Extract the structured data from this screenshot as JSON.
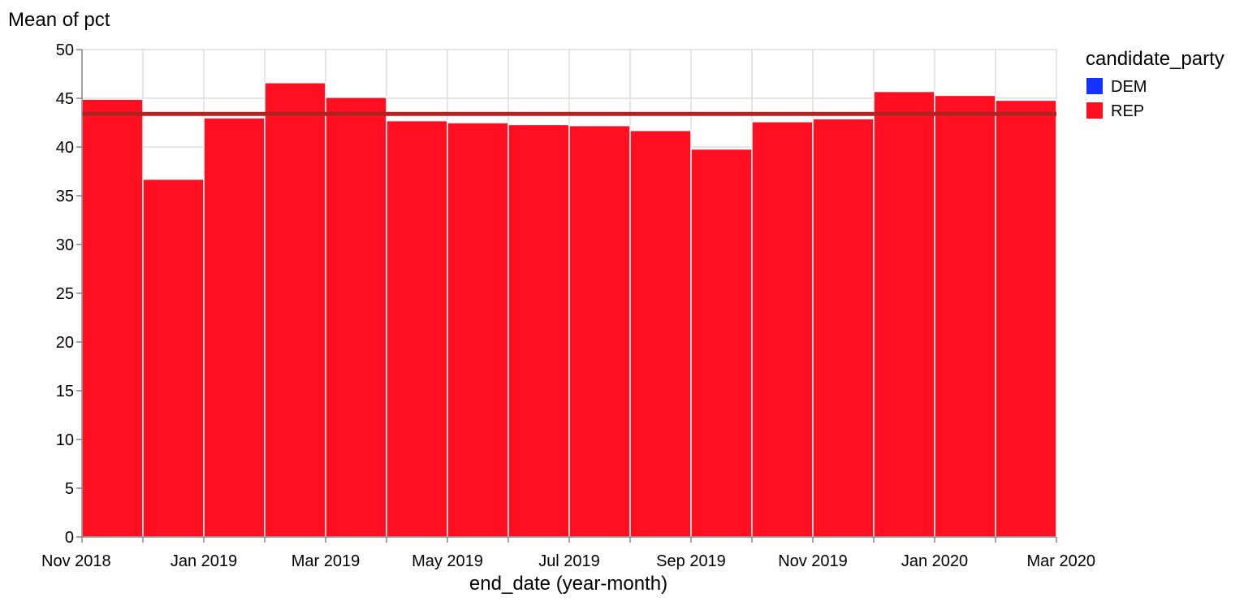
{
  "chart_data": {
    "type": "bar",
    "title": "",
    "ylabel": "Mean of pct",
    "xlabel": "end_date (year-month)",
    "ylim": [
      0,
      50
    ],
    "y_ticks": [
      0,
      5,
      10,
      15,
      20,
      25,
      30,
      35,
      40,
      45,
      50
    ],
    "x_range": [
      "2018-11",
      "2020-03"
    ],
    "x_ticks": [
      {
        "date": "2018-11",
        "label": "Nov 2018"
      },
      {
        "date": "2019-01",
        "label": "Jan 2019"
      },
      {
        "date": "2019-03",
        "label": "Mar 2019"
      },
      {
        "date": "2019-05",
        "label": "May 2019"
      },
      {
        "date": "2019-07",
        "label": "Jul 2019"
      },
      {
        "date": "2019-09",
        "label": "Sep 2019"
      },
      {
        "date": "2019-11",
        "label": "Nov 2019"
      },
      {
        "date": "2020-01",
        "label": "Jan 2020"
      },
      {
        "date": "2020-03",
        "label": "Mar 2020"
      }
    ],
    "grid": true,
    "series": [
      {
        "name": "REP",
        "color": "#ff0f1f",
        "bars": [
          {
            "start": "2018-11",
            "end": "2018-12",
            "value": 44.9
          },
          {
            "start": "2018-12",
            "end": "2019-01",
            "value": 36.7
          },
          {
            "start": "2019-01",
            "end": "2019-02",
            "value": 43.0
          },
          {
            "start": "2019-02",
            "end": "2019-03",
            "value": 46.6
          },
          {
            "start": "2019-03",
            "end": "2019-04",
            "value": 45.1
          },
          {
            "start": "2019-04",
            "end": "2019-05",
            "value": 42.7
          },
          {
            "start": "2019-05",
            "end": "2019-06",
            "value": 42.5
          },
          {
            "start": "2019-06",
            "end": "2019-07",
            "value": 42.3
          },
          {
            "start": "2019-07",
            "end": "2019-08",
            "value": 42.2
          },
          {
            "start": "2019-08",
            "end": "2019-09",
            "value": 41.7
          },
          {
            "start": "2019-09",
            "end": "2019-10",
            "value": 39.8
          },
          {
            "start": "2019-10",
            "end": "2019-11",
            "value": 42.6
          },
          {
            "start": "2019-11",
            "end": "2019-12",
            "value": 42.9
          },
          {
            "start": "2019-12",
            "end": "2020-01",
            "value": 45.7
          },
          {
            "start": "2020-01",
            "end": "2020-02",
            "value": 45.3
          },
          {
            "start": "2020-02",
            "end": "2020-03",
            "value": 44.8
          }
        ]
      }
    ],
    "mean_rule": {
      "value": 43.4,
      "color": "#b22222"
    },
    "legend": {
      "title": "candidate_party",
      "position": "right",
      "entries": [
        {
          "label": "DEM",
          "color": "#1432ff"
        },
        {
          "label": "REP",
          "color": "#ff0f1f"
        }
      ]
    }
  }
}
